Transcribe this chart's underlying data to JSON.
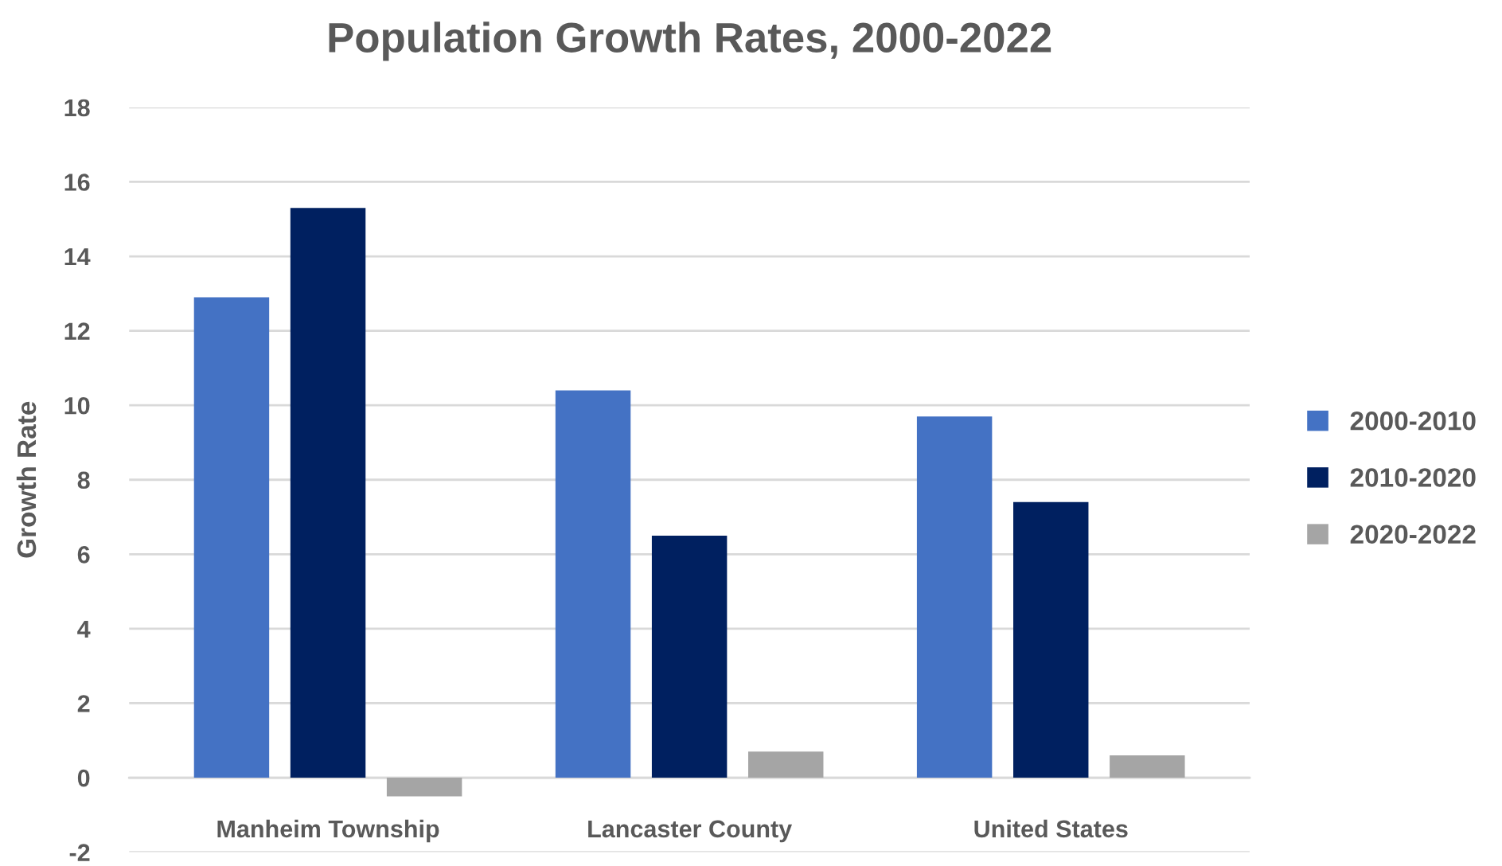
{
  "chart_data": {
    "type": "bar",
    "title": "Population Growth Rates, 2000-2022",
    "ylabel": "Growth Rate",
    "categories": [
      "Manheim Township",
      "Lancaster County",
      "United States"
    ],
    "series": [
      {
        "name": "2000-2010",
        "color": "#4472c4",
        "values": [
          12.9,
          10.4,
          9.7
        ]
      },
      {
        "name": "2010-2020",
        "color": "#002060",
        "values": [
          15.3,
          6.5,
          7.4
        ]
      },
      {
        "name": "2020-2022",
        "color": "#a5a5a5",
        "values": [
          -0.5,
          0.7,
          0.6
        ]
      }
    ],
    "ylim": [
      -2,
      18
    ],
    "yticks": [
      -2,
      0,
      2,
      4,
      6,
      8,
      10,
      12,
      14,
      16,
      18
    ],
    "grid": "y",
    "legend": "right"
  }
}
